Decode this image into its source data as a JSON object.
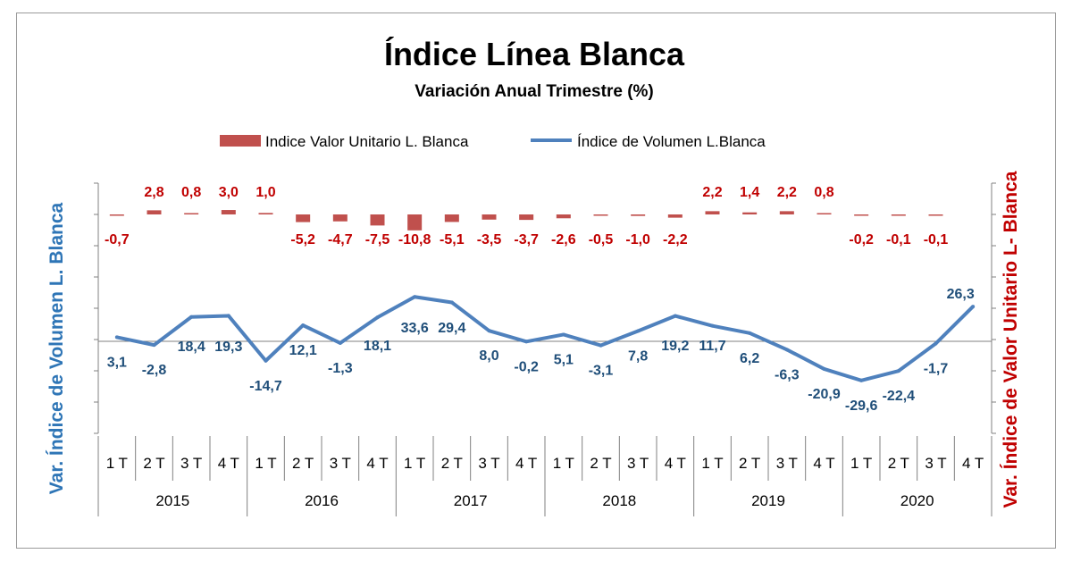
{
  "chart_data": {
    "type": "bar+line",
    "title": "Índice Línea Blanca",
    "subtitle": "Variación Anual Trimestre  (%)",
    "ylabel_left": "Var. Índice de Volumen L. Blanca",
    "ylabel_right": "Var. Índice de Valor Unitario L- Blanca",
    "legend_position": "top-center",
    "grid": false,
    "colors": {
      "bars": "#c0504d",
      "bar_labels": "#c00000",
      "line": "#4f81bd",
      "line_labels": "#1f4e79",
      "axis_left": "#2e75b6",
      "axis_right": "#c00000"
    },
    "categories": [
      "1 T",
      "2 T",
      "3 T",
      "4 T",
      "1 T",
      "2 T",
      "3 T",
      "4 T",
      "1 T",
      "2 T",
      "3 T",
      "4 T",
      "1 T",
      "2 T",
      "3 T",
      "4 T",
      "1 T",
      "2 T",
      "3 T",
      "4 T",
      "1 T",
      "2 T",
      "3 T",
      "4 T"
    ],
    "years": [
      "2015",
      "2016",
      "2017",
      "2018",
      "2019",
      "2020"
    ],
    "series": [
      {
        "name": "Indice Valor Unitario L. Blanca",
        "type": "bar",
        "axis": "right",
        "values": [
          -0.7,
          2.8,
          0.8,
          3.0,
          1.0,
          -5.2,
          -4.7,
          -7.5,
          -10.8,
          -5.1,
          -3.5,
          -3.7,
          -2.6,
          -0.5,
          -1.0,
          -2.2,
          2.2,
          1.4,
          2.2,
          0.8,
          -0.2,
          -0.1,
          -0.1,
          null
        ],
        "labels": [
          "-0,7",
          "2,8",
          "0,8",
          "3,0",
          "1,0",
          "-5,2",
          "-4,7",
          "-7,5",
          "-10,8",
          "-5,1",
          "-3,5",
          "-3,7",
          "-2,6",
          "-0,5",
          "-1,0",
          "-2,2",
          "2,2",
          "1,4",
          "2,2",
          "0,8",
          "-0,2",
          "-0,1",
          "-0,1",
          ""
        ]
      },
      {
        "name": "Índice de Volumen L.Blanca",
        "type": "line",
        "axis": "left",
        "values": [
          3.1,
          -2.8,
          18.4,
          19.3,
          -14.7,
          12.1,
          -1.3,
          18.1,
          33.6,
          29.4,
          8.0,
          -0.2,
          5.1,
          -3.1,
          7.8,
          19.2,
          11.7,
          6.2,
          -6.3,
          -20.9,
          -29.6,
          -22.4,
          -1.7,
          26.3
        ],
        "labels": [
          "3,1",
          "-2,8",
          "18,4",
          "19,3",
          "-14,7",
          "12,1",
          "-1,3",
          "18,1",
          "33,6",
          "29,4",
          "8,0",
          "-0,2",
          "5,1",
          "-3,1",
          "7,8",
          "19,2",
          "11,7",
          "6,2",
          "-6,3",
          "-20,9",
          "-29,6",
          "-22,4",
          "-1,7",
          "26,3"
        ]
      }
    ]
  }
}
